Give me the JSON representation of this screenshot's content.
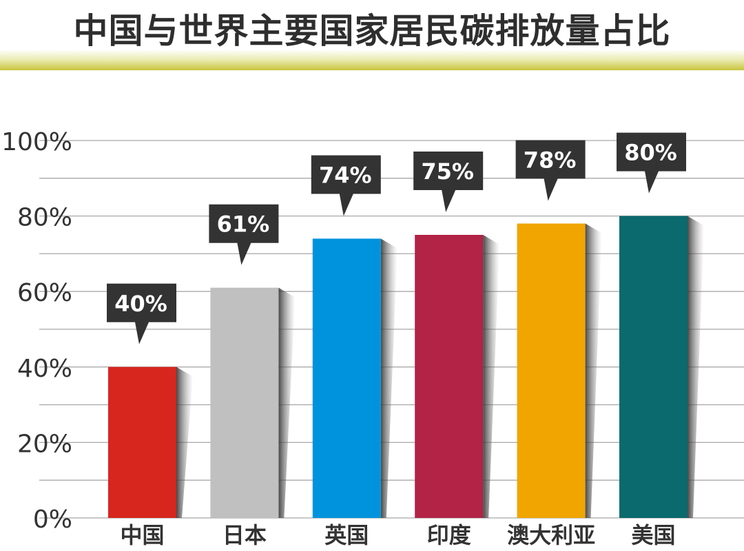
{
  "chart_data": {
    "type": "bar",
    "title": "中国与世界主要国家居民碳排放量占比",
    "categories": [
      "中国",
      "日本",
      "英国",
      "印度",
      "澳大利亚",
      "美国"
    ],
    "values": [
      40,
      61,
      74,
      75,
      78,
      80
    ],
    "value_labels": [
      "40%",
      "61%",
      "74%",
      "75%",
      "78%",
      "80%"
    ],
    "colors": [
      "#d7261e",
      "#c0c0c0",
      "#0093dd",
      "#b22346",
      "#f0a500",
      "#0a6a6e"
    ],
    "yticks": [
      0,
      20,
      40,
      60,
      80,
      100
    ],
    "ytick_labels": [
      "0%",
      "20%",
      "40%",
      "60%",
      "80%",
      "100%"
    ],
    "ylim": [
      0,
      100
    ],
    "grid": true,
    "xlabel": "",
    "ylabel": ""
  }
}
